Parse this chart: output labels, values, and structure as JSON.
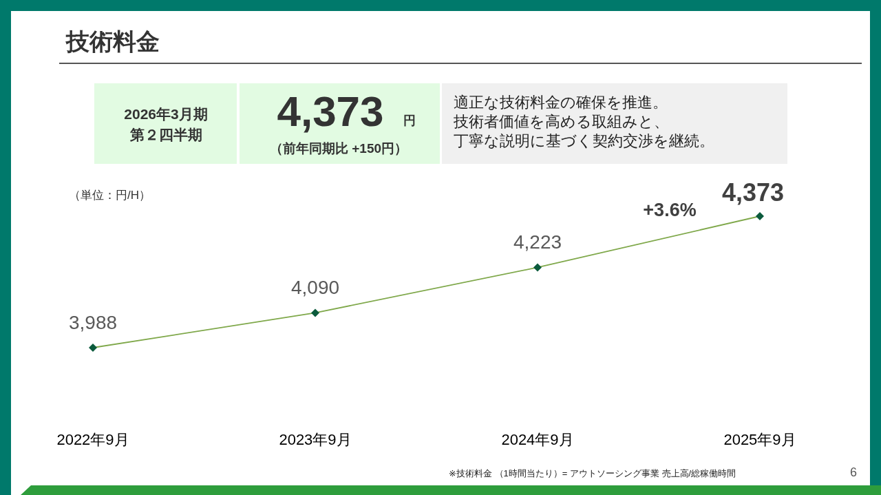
{
  "chart_data": {
    "type": "line",
    "title": "技術料金",
    "categories": [
      "2022年9月",
      "2023年9月",
      "2024年9月",
      "2025年9月"
    ],
    "series": [
      {
        "color": "#7fa84a",
        "values": [
          3988,
          4090,
          4223,
          4373
        ],
        "value_labels": [
          "3,988",
          "4,090",
          "4,223",
          "4,373"
        ]
      }
    ],
    "marker": "diamond",
    "annotations": [
      "（単位：円/H）",
      "+3.6%",
      "2026年3月期",
      "第２四半期",
      "4,373",
      "円",
      "（前年同期比 +150円）",
      "適正な技術料金の確保を推進。",
      "技術者価値を高める取組みと、",
      "丁寧な説明に基づく契約交渉を継続。",
      "※技術料金 （1時間当たり）= アウトソーシング事業 売上高/総稼働時間",
      "6"
    ]
  }
}
